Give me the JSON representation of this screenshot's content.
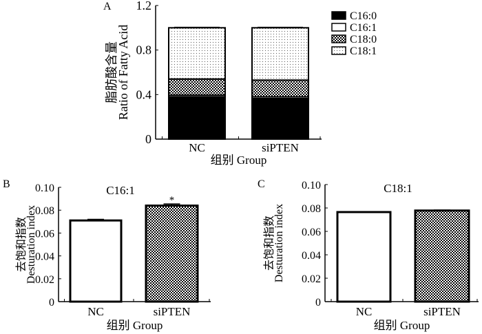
{
  "chart_data": [
    {
      "panel": "A",
      "type": "stacked-bar",
      "categories": [
        "NC",
        "siPTEN"
      ],
      "series": [
        {
          "name": "C16:0",
          "fill": "solid-black",
          "values": [
            0.38,
            0.365
          ]
        },
        {
          "name": "C16:1",
          "fill": "white",
          "values": [
            0.015,
            0.015
          ]
        },
        {
          "name": "C18:0",
          "fill": "checker",
          "values": [
            0.145,
            0.15
          ]
        },
        {
          "name": "C18:1",
          "fill": "dots",
          "values": [
            0.46,
            0.47
          ]
        }
      ],
      "ylabel_cn": "脂肪酸含量",
      "ylabel": "Ratio of Fatty Acid",
      "xlabel": "组别 Group",
      "ylim": [
        0,
        1.2
      ],
      "yticks": [
        "0",
        "0.4",
        "0.8",
        "1.2"
      ],
      "legend_position": "right"
    },
    {
      "panel": "B",
      "type": "bar",
      "title": "C16:1",
      "categories": [
        "NC",
        "siPTEN"
      ],
      "values": [
        0.071,
        0.084
      ],
      "errors": [
        0.001,
        0.0015
      ],
      "fills": [
        "white",
        "checker"
      ],
      "annotations": [
        "",
        "*"
      ],
      "ylabel_cn": "去饱和指数",
      "ylabel": "Desturation index",
      "xlabel": "组别 Group",
      "ylim": [
        0,
        0.1
      ],
      "yticks": [
        "0",
        "0.02",
        "0.04",
        "0.06",
        "0.08",
        "0.10"
      ]
    },
    {
      "panel": "C",
      "type": "bar",
      "title": "C18:1",
      "categories": [
        "NC",
        "siPTEN"
      ],
      "values": [
        0.0765,
        0.0778
      ],
      "errors": [
        0.0003,
        0.0004
      ],
      "fills": [
        "white",
        "checker"
      ],
      "annotations": [
        "",
        ""
      ],
      "ylabel_cn": "去饱和指数",
      "ylabel": "Desturation index",
      "xlabel": "组别 Group",
      "ylim": [
        0,
        0.1
      ],
      "yticks": [
        "0",
        "0.02",
        "0.04",
        "0.06",
        "0.08",
        "0.10"
      ]
    }
  ]
}
